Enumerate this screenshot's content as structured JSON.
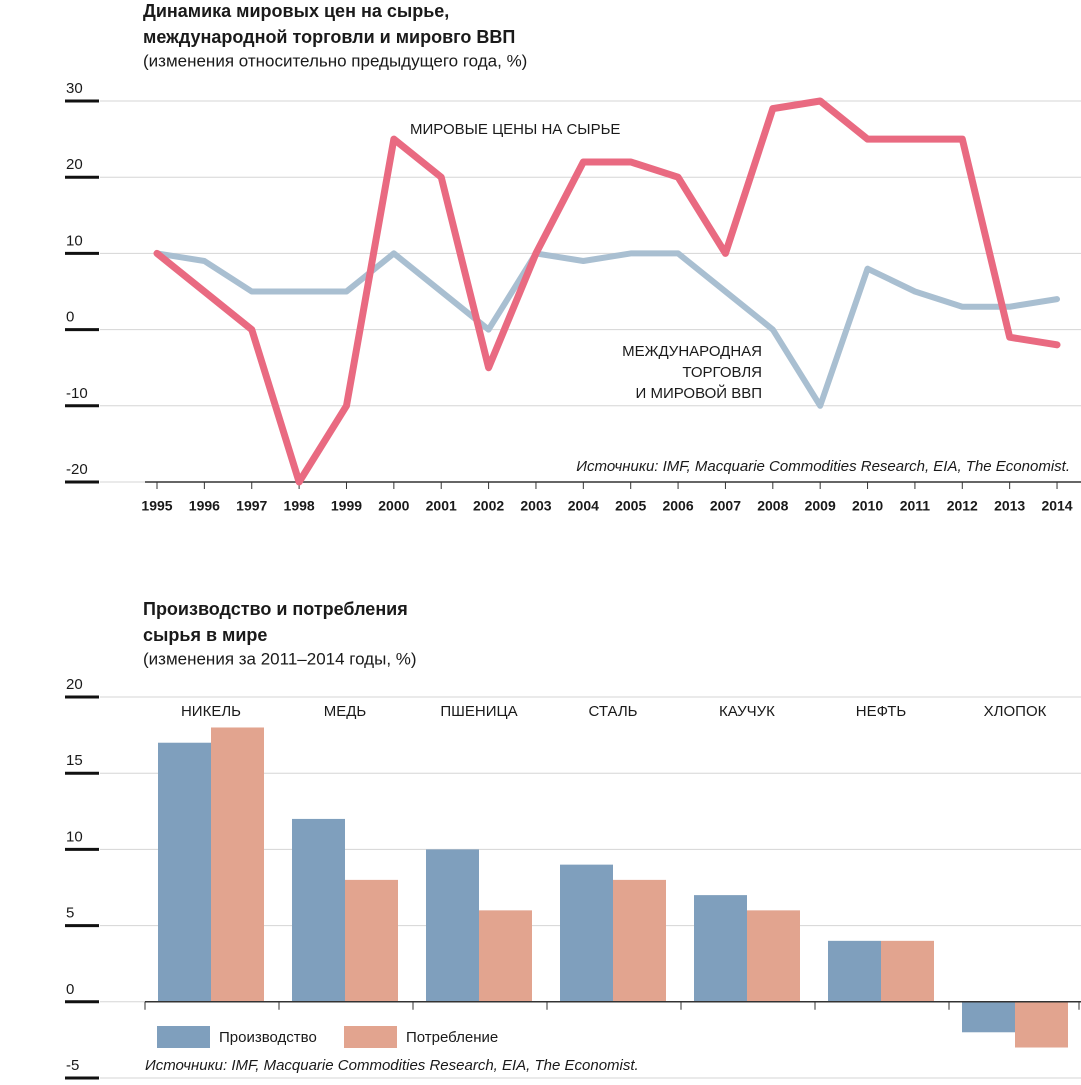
{
  "chart_data": [
    {
      "type": "line",
      "title": [
        "Динамика мировых цен на сырье,",
        "международной торговли и мировго ВВП"
      ],
      "subtitle": "(изменения относительно предыдущего года, %)",
      "source": "Источники: IMF, Macquarie Commodities Research, EIA, The Economist.",
      "categories": [
        "1995",
        "1996",
        "1997",
        "1998",
        "1999",
        "2000",
        "2001",
        "2002",
        "2003",
        "2004",
        "2005",
        "2006",
        "2007",
        "2008",
        "2009",
        "2010",
        "2011",
        "2012",
        "2013",
        "2014"
      ],
      "series": [
        {
          "name": [
            "МИРОВЫЕ ЦЕНЫ НА СЫРЬЕ"
          ],
          "color": "#e96a81",
          "values": [
            10,
            5,
            0,
            -20,
            -10,
            25,
            20,
            -5,
            10,
            22,
            22,
            20,
            10,
            29,
            30,
            25,
            25,
            25,
            -1,
            -2
          ]
        },
        {
          "name": [
            "МЕЖДУНАРОДНАЯ",
            "ТОРГОВЛЯ",
            "И МИРОВОЙ ВВП"
          ],
          "color": "#a9bfd1",
          "values": [
            10,
            9,
            5,
            5,
            5,
            10,
            5,
            0,
            10,
            9,
            10,
            10,
            5,
            0,
            -10,
            8,
            5,
            3,
            3,
            4
          ]
        }
      ],
      "ylim": [
        -20,
        30
      ],
      "yticks": [
        30,
        20,
        10,
        0,
        -10,
        -20
      ],
      "grid": true
    },
    {
      "type": "bar",
      "title": [
        "Производство и потребления",
        "сырья в мире"
      ],
      "subtitle": "(изменения за 2011–2014 годы, %)",
      "source": "Источники: IMF, Macquarie Commodities Research, EIA, The Economist.",
      "categories": [
        "НИКЕЛЬ",
        "МЕДЬ",
        "ПШЕНИЦА",
        "СТАЛЬ",
        "КАУЧУК",
        "НЕФТЬ",
        "ХЛОПОК"
      ],
      "series": [
        {
          "name": "Производство",
          "color": "#7f9fbd",
          "values": [
            17,
            12,
            10,
            9,
            7,
            4,
            -2
          ]
        },
        {
          "name": "Потребление",
          "color": "#e2a48f",
          "values": [
            18,
            8,
            6,
            8,
            6,
            4,
            -3
          ]
        }
      ],
      "ylim": [
        -5,
        20
      ],
      "yticks": [
        20,
        15,
        10,
        5,
        0,
        -5
      ],
      "grid": true
    }
  ]
}
